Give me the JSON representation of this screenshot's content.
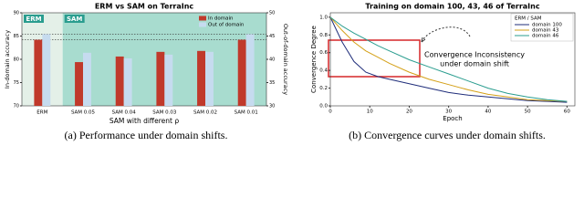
{
  "chart_data": [
    {
      "type": "bar",
      "title": "ERM vs SAM on TerraInc",
      "categories": [
        "ERM",
        "SAM 0.05",
        "SAM 0.04",
        "SAM 0.03",
        "SAM 0.02",
        "SAM 0.01"
      ],
      "series": [
        {
          "name": "In domain",
          "color": "#c0392b",
          "values": [
            84.2,
            79.4,
            80.6,
            81.6,
            81.8,
            84.2
          ]
        },
        {
          "name": "Out of domain",
          "color": "#c6dbef",
          "axis": "y2",
          "values": [
            45.4,
            41.4,
            40.2,
            41.0,
            41.6,
            45.4
          ]
        }
      ],
      "ylim": [
        70,
        90
      ],
      "yticks": [
        70,
        75,
        80,
        85,
        90
      ],
      "y2lim": [
        30,
        50
      ],
      "y2ticks": [
        30,
        35,
        40,
        45,
        50
      ],
      "ylabel": "In-domain accuracy",
      "y2label": "Out-of-domain accuracy",
      "xlabel": "SAM with different ρ",
      "region_labels": [
        "ERM",
        "SAM"
      ],
      "legend": "upper right",
      "caption": "(a) Performance under domain shifts."
    },
    {
      "type": "line",
      "title": "Training on domain 100, 43, 46 of TerraInc",
      "x": [
        0,
        3,
        6,
        9,
        12,
        15,
        20,
        25,
        30,
        35,
        40,
        45,
        50,
        55,
        60
      ],
      "series": [
        {
          "name": "domain 100",
          "color": "#1f2d7a",
          "values": [
            1.0,
            0.72,
            0.5,
            0.38,
            0.33,
            0.3,
            0.25,
            0.2,
            0.15,
            0.12,
            0.1,
            0.08,
            0.06,
            0.05,
            0.04
          ]
        },
        {
          "name": "domain 43",
          "color": "#d4a017",
          "values": [
            1.0,
            0.85,
            0.72,
            0.62,
            0.55,
            0.48,
            0.38,
            0.3,
            0.24,
            0.18,
            0.13,
            0.1,
            0.07,
            0.06,
            0.05
          ]
        },
        {
          "name": "domain 46",
          "color": "#2a9d8f",
          "values": [
            1.0,
            0.9,
            0.82,
            0.75,
            0.68,
            0.62,
            0.52,
            0.44,
            0.36,
            0.28,
            0.2,
            0.14,
            0.1,
            0.07,
            0.05
          ]
        }
      ],
      "xlim": [
        0,
        62
      ],
      "xticks": [
        0,
        10,
        20,
        30,
        40,
        50,
        60
      ],
      "ylim": [
        0,
        1.05
      ],
      "yticks": [
        {
          "value": 0,
          "label": "0.0"
        },
        {
          "value": 0.2,
          "label": "0.2"
        },
        {
          "value": 0.4,
          "label": "0.4"
        },
        {
          "value": 0.6,
          "label": "0.6"
        },
        {
          "value": 0.8,
          "label": "0.8"
        },
        {
          "value": 1,
          "label": "1.0"
        }
      ],
      "xlabel": "Epoch",
      "ylabel": "Convergence Degree",
      "legend_title": "ERM / SAM",
      "legend": "upper right",
      "annotation": [
        "Convergence Inconsistency",
        "under domain shift"
      ],
      "caption": "(b) Convergence curves under domain shifts."
    }
  ]
}
